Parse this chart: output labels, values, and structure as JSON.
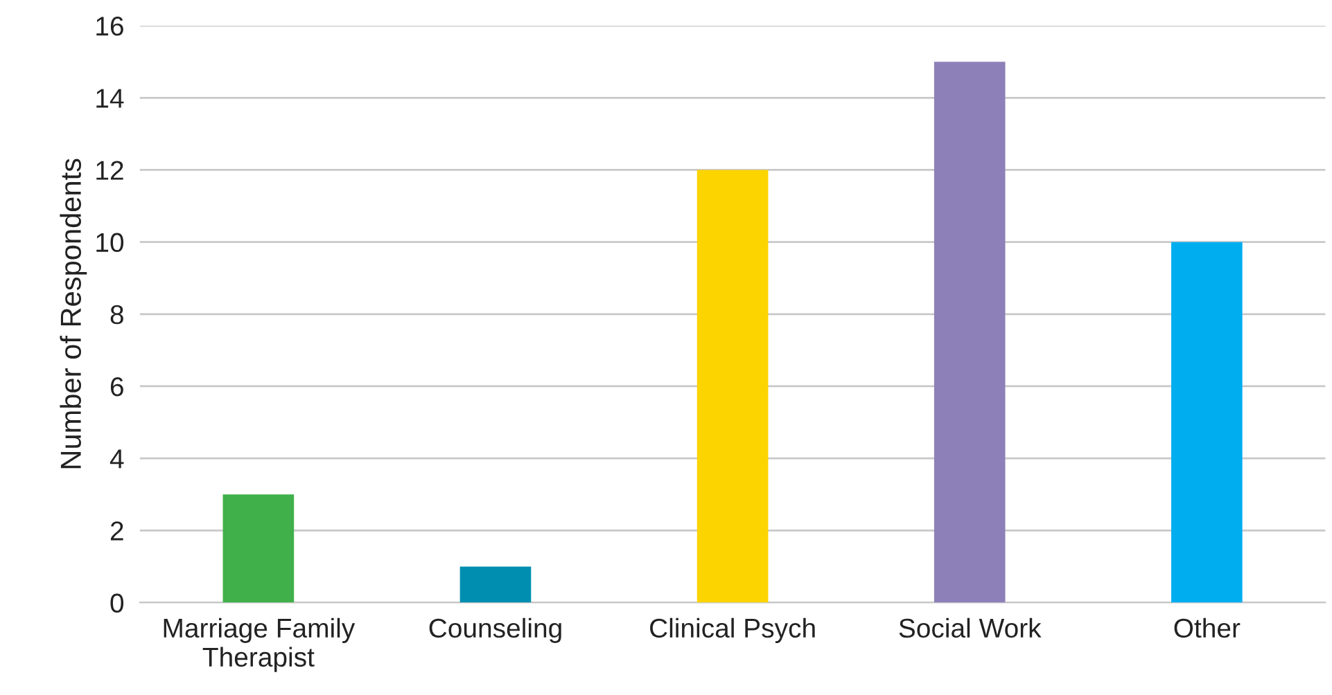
{
  "chart_data": {
    "type": "bar",
    "ylabel": "Number of Respondents",
    "categories": [
      "Marriage Family\nTherapist",
      "Counseling",
      "Clinical Psych",
      "Social Work",
      "Other"
    ],
    "values": [
      3,
      1,
      12,
      15,
      10
    ],
    "colors": [
      "#40b04a",
      "#008eb0",
      "#fcd400",
      "#8d80b8",
      "#00aeef"
    ],
    "ylim": [
      0,
      16
    ],
    "yticks": [
      0,
      2,
      4,
      6,
      8,
      10,
      12,
      14,
      16
    ],
    "grid": "y",
    "legend": false
  }
}
